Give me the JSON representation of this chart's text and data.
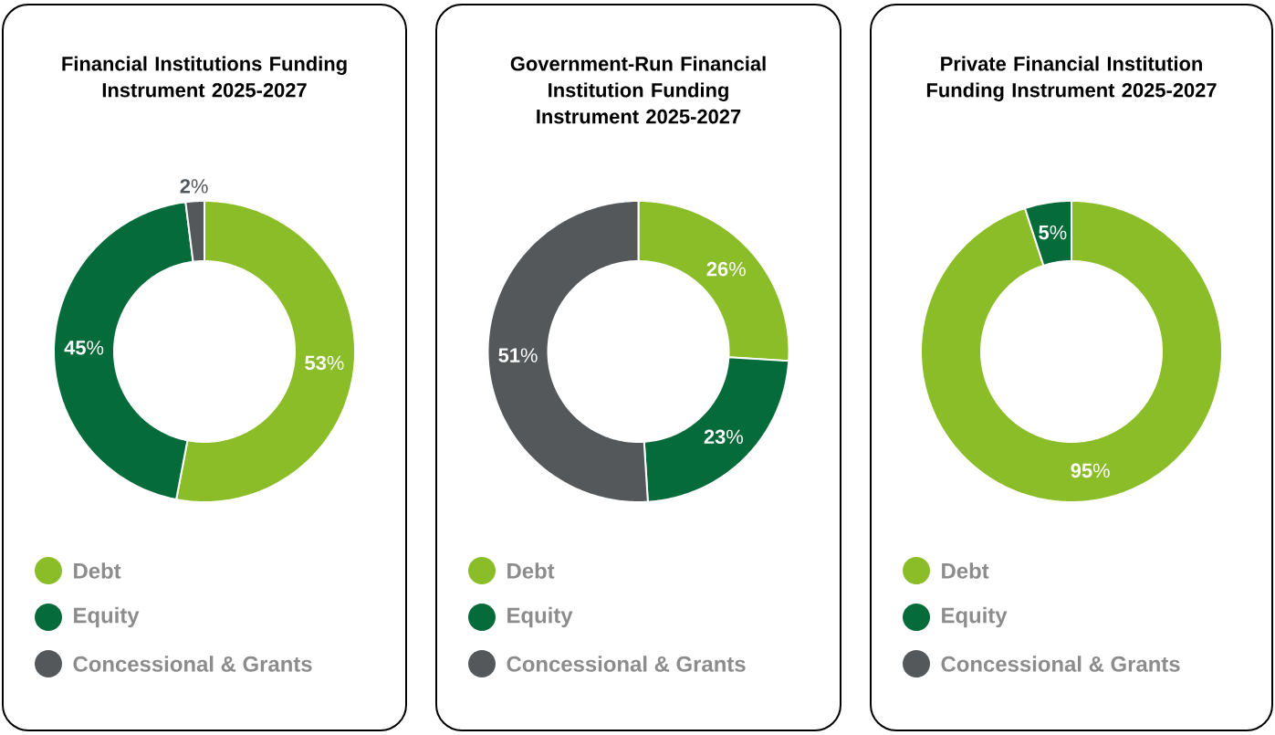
{
  "chart_data": [
    {
      "type": "donut",
      "title": "Financial Institutions Funding Instrument 2025-2027",
      "categories": [
        "Debt",
        "Equity",
        "Concessional & Grants"
      ],
      "values": [
        53,
        45,
        2
      ],
      "colors": [
        "#8abd28",
        "#066b3a",
        "#54585b"
      ],
      "value_labels": [
        "**53**%",
        "**45**%",
        "**2**%"
      ],
      "legend": "bottom"
    },
    {
      "type": "donut",
      "title": "Government-Run Financial Institution Funding Instrument 2025-2027",
      "categories": [
        "Debt",
        "Equity",
        "Concessional & Grants"
      ],
      "values": [
        26,
        23,
        51
      ],
      "colors": [
        "#8abd28",
        "#066b3a",
        "#54585b"
      ],
      "value_labels": [
        "**26**%",
        "**23**%",
        "**51**%"
      ],
      "legend": "bottom"
    },
    {
      "type": "donut",
      "title": "Private Financial Institution Funding Instrument 2025-2027",
      "categories": [
        "Debt",
        "Equity",
        "Concessional & Grants"
      ],
      "values": [
        95,
        5,
        0
      ],
      "colors": [
        "#8abd28",
        "#066b3a",
        "#54585b"
      ],
      "value_labels": [
        "**95**%",
        "**5**%",
        null
      ],
      "legend": "bottom"
    }
  ]
}
